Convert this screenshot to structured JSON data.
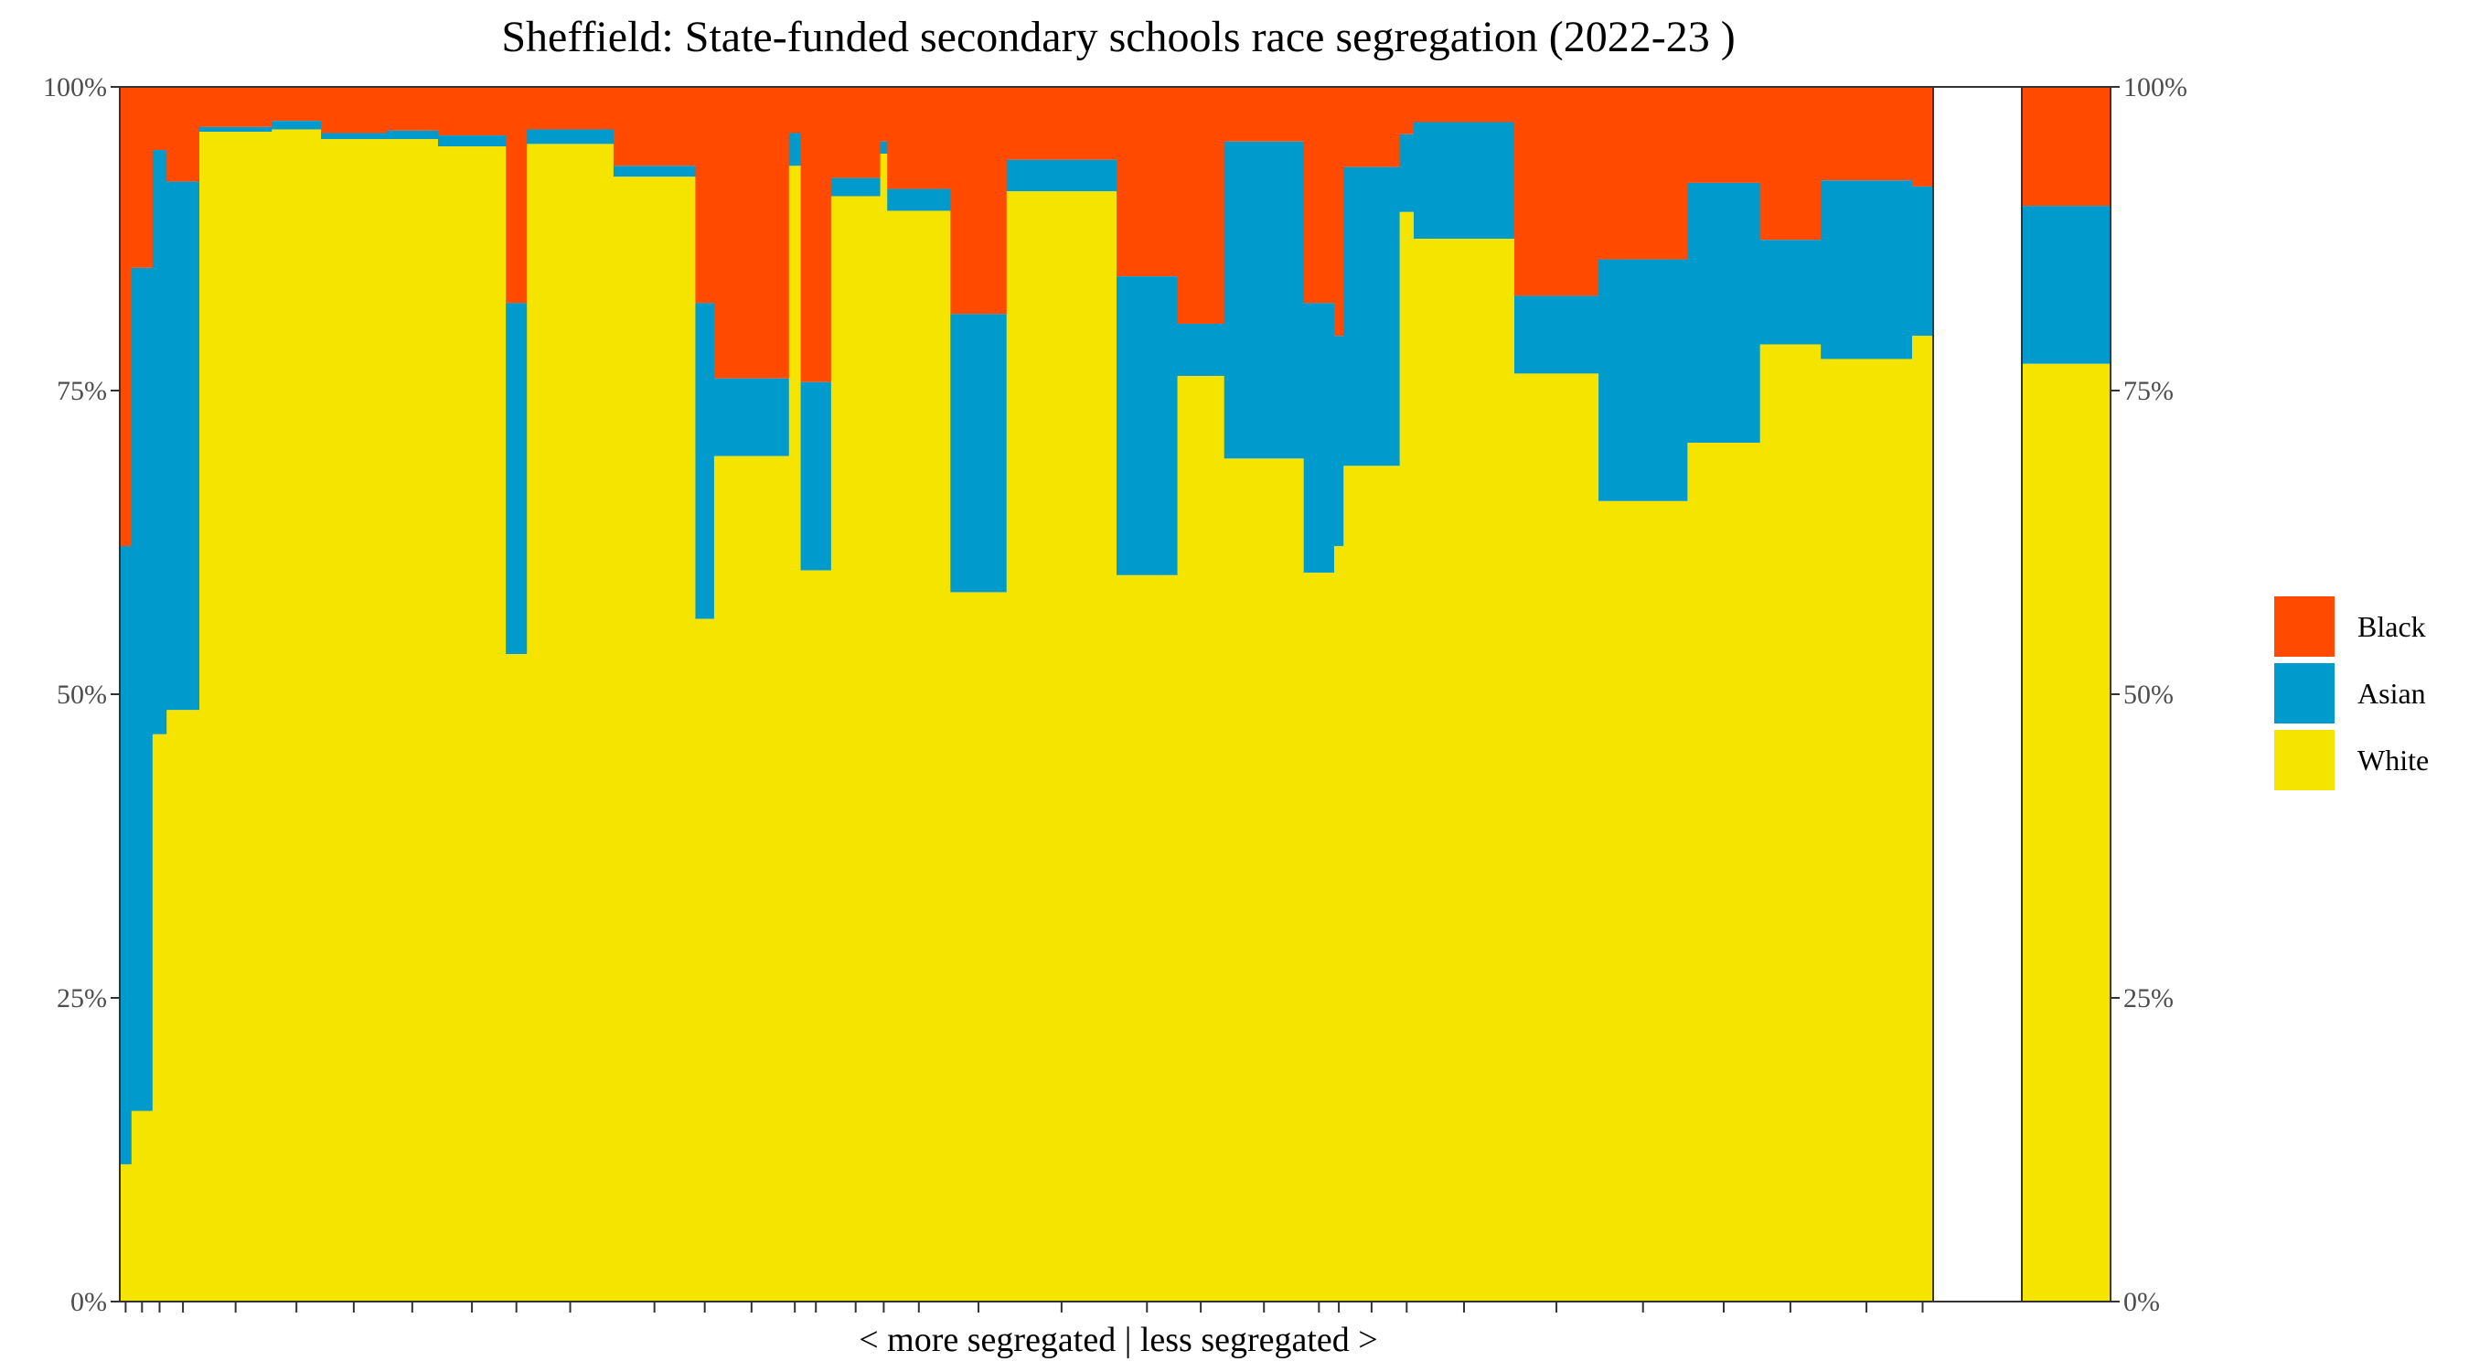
{
  "chart_data": {
    "type": "bar",
    "title": "Sheffield: State-funded secondary schools race segregation (2022-23 )",
    "xlabel": "< more segregated | less segregated >",
    "ylabel": "",
    "ylim": [
      0,
      1
    ],
    "y_ticks": [
      "0%",
      "25%",
      "50%",
      "75%",
      "100%"
    ],
    "legend": {
      "placement": "right",
      "entries": [
        {
          "name": "Black",
          "color": "#FF4A00"
        },
        {
          "name": "Asian",
          "color": "#009ACD"
        },
        {
          "name": "White",
          "color": "#F5E400"
        }
      ]
    },
    "series_colors": {
      "black": "#FF4A00",
      "asian": "#009ACD",
      "white": "#F5E400"
    },
    "note": "Variable-width stacked bars; each school's width proportional to pupil count. Values are cumulative fractions: white top, asian top (black fills to 1.0).",
    "schools": [
      {
        "pupils": 12.5,
        "white": 0.113,
        "asian": 0.622
      },
      {
        "pupils": 22.5,
        "white": 0.157,
        "asian": 0.851
      },
      {
        "pupils": 15.0,
        "white": 0.467,
        "asian": 0.948
      },
      {
        "pupils": 35.0,
        "white": 0.487,
        "asian": 0.922
      },
      {
        "pupils": 77.5,
        "white": 0.963,
        "asian": 0.967
      },
      {
        "pupils": 52.5,
        "white": 0.965,
        "asian": 0.972
      },
      {
        "pupils": 70.0,
        "white": 0.957,
        "asian": 0.962
      },
      {
        "pupils": 55.0,
        "white": 0.957,
        "asian": 0.964
      },
      {
        "pupils": 72.5,
        "white": 0.951,
        "asian": 0.96
      },
      {
        "pupils": 22.5,
        "white": 0.533,
        "asian": 0.822
      },
      {
        "pupils": 92.5,
        "white": 0.953,
        "asian": 0.965
      },
      {
        "pupils": 87.5,
        "white": 0.926,
        "asian": 0.935
      },
      {
        "pupils": 20.0,
        "white": 0.562,
        "asian": 0.822
      },
      {
        "pupils": 80.0,
        "white": 0.696,
        "asian": 0.76
      },
      {
        "pupils": 12.5,
        "white": 0.935,
        "asian": 0.962
      },
      {
        "pupils": 32.5,
        "white": 0.602,
        "asian": 0.757
      },
      {
        "pupils": 52.5,
        "white": 0.91,
        "asian": 0.925
      },
      {
        "pupils": 7.5,
        "white": 0.945,
        "asian": 0.955
      },
      {
        "pupils": 67.5,
        "white": 0.898,
        "asian": 0.916
      },
      {
        "pupils": 60.0,
        "white": 0.584,
        "asian": 0.813
      },
      {
        "pupils": 117.5,
        "white": 0.914,
        "asian": 0.94
      },
      {
        "pupils": 65.0,
        "white": 0.598,
        "asian": 0.844
      },
      {
        "pupils": 50.0,
        "white": 0.762,
        "asian": 0.805
      },
      {
        "pupils": 85.0,
        "white": 0.694,
        "asian": 0.955
      },
      {
        "pupils": 32.5,
        "white": 0.6,
        "asian": 0.822
      },
      {
        "pupils": 10.0,
        "white": 0.622,
        "asian": 0.795
      },
      {
        "pupils": 60.0,
        "white": 0.688,
        "asian": 0.934
      },
      {
        "pupils": 15.0,
        "white": 0.897,
        "asian": 0.961
      },
      {
        "pupils": 107.5,
        "white": 0.875,
        "asian": 0.971
      },
      {
        "pupils": 90.0,
        "white": 0.764,
        "asian": 0.828
      },
      {
        "pupils": 95.0,
        "white": 0.659,
        "asian": 0.858
      },
      {
        "pupils": 77.5,
        "white": 0.707,
        "asian": 0.921
      },
      {
        "pupils": 65.0,
        "white": 0.788,
        "asian": 0.874
      },
      {
        "pupils": 97.5,
        "white": 0.776,
        "asian": 0.923
      },
      {
        "pupils": 22.5,
        "white": 0.795,
        "asian": 0.918
      }
    ],
    "overall": {
      "white": 0.772,
      "asian": 0.902
    }
  }
}
